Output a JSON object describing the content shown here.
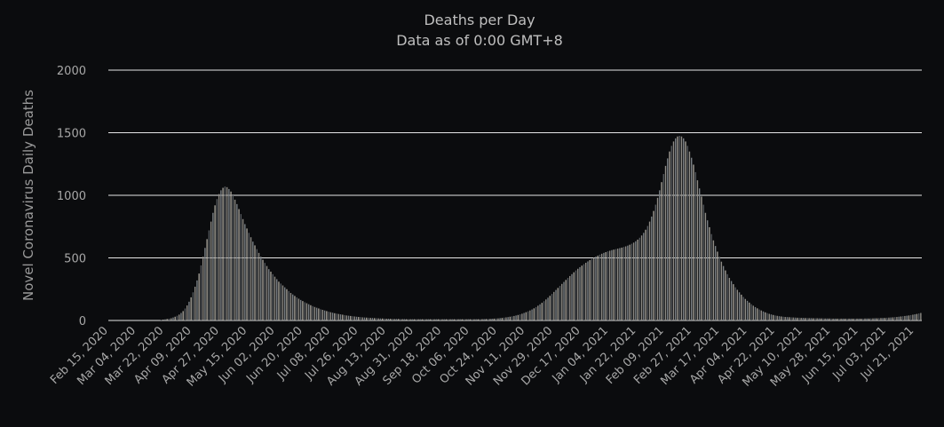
{
  "chart_data": {
    "type": "bar",
    "title": "Deaths per Day",
    "subtitle": "Data as of 0:00 GMT+8",
    "xlabel": "",
    "ylabel": "Novel Coronavirus Daily Deaths",
    "ylim": [
      0,
      2000
    ],
    "yticks": [
      0,
      500,
      1000,
      1500,
      2000
    ],
    "grid": true,
    "x_start": "2020-02-15",
    "x_end": "2021-07-26",
    "xtick_labels": [
      "Feb 15, 2020",
      "Mar 04, 2020",
      "Mar 22, 2020",
      "Apr 09, 2020",
      "Apr 27, 2020",
      "May 15, 2020",
      "Jun 02, 2020",
      "Jun 20, 2020",
      "Jul 08, 2020",
      "Jul 26, 2020",
      "Aug 13, 2020",
      "Aug 31, 2020",
      "Sep 18, 2020",
      "Oct 06, 2020",
      "Oct 24, 2020",
      "Nov 11, 2020",
      "Nov 29, 2020",
      "Dec 17, 2020",
      "Jan 04, 2021",
      "Jan 22, 2021",
      "Feb 09, 2021",
      "Feb 27, 2021",
      "Mar 17, 2021",
      "Apr 04, 2021",
      "Apr 22, 2021",
      "May 10, 2021",
      "May 28, 2021",
      "Jun 15, 2021",
      "Jul 03, 2021",
      "Jul 21, 2021"
    ],
    "bar_colors": [
      "#7a8085",
      "#a39f96",
      "#55595d",
      "#8f8c86"
    ],
    "values": [
      0,
      0,
      0,
      0,
      0,
      0,
      0,
      0,
      0,
      0,
      0,
      0,
      0,
      0,
      0,
      0,
      0,
      0,
      0,
      0,
      0,
      0,
      0,
      0,
      0,
      0,
      5,
      7,
      9,
      12,
      15,
      18,
      24,
      30,
      38,
      47,
      60,
      75,
      96,
      120,
      150,
      185,
      225,
      270,
      320,
      375,
      440,
      510,
      580,
      650,
      720,
      790,
      860,
      920,
      970,
      1010,
      1040,
      1060,
      1070,
      1065,
      1050,
      1030,
      1000,
      965,
      930,
      890,
      850,
      810,
      770,
      735,
      700,
      665,
      630,
      600,
      570,
      540,
      510,
      485,
      460,
      435,
      410,
      390,
      370,
      350,
      330,
      310,
      295,
      280,
      265,
      250,
      235,
      220,
      208,
      196,
      185,
      174,
      164,
      155,
      146,
      138,
      130,
      122,
      115,
      108,
      102,
      96,
      90,
      85,
      80,
      75,
      70,
      66,
      62,
      58,
      55,
      52,
      49,
      46,
      43,
      40,
      38,
      36,
      34,
      32,
      30,
      28,
      27,
      25,
      24,
      23,
      22,
      21,
      20,
      19,
      18,
      17,
      16,
      16,
      15,
      14,
      14,
      13,
      13,
      12,
      12,
      12,
      11,
      11,
      11,
      10,
      10,
      10,
      10,
      10,
      10,
      10,
      10,
      10,
      10,
      10,
      10,
      10,
      10,
      10,
      10,
      10,
      10,
      10,
      10,
      10,
      10,
      10,
      10,
      10,
      10,
      10,
      10,
      10,
      10,
      10,
      10,
      10,
      10,
      10,
      10,
      10,
      10,
      11,
      11,
      12,
      12,
      13,
      14,
      15,
      16,
      17,
      19,
      21,
      23,
      25,
      27,
      30,
      33,
      36,
      40,
      44,
      49,
      54,
      60,
      66,
      73,
      80,
      88,
      97,
      107,
      118,
      129,
      141,
      154,
      168,
      182,
      197,
      212,
      228,
      244,
      260,
      276,
      292,
      308,
      324,
      340,
      355,
      370,
      385,
      400,
      413,
      426,
      438,
      450,
      461,
      472,
      482,
      492,
      501,
      510,
      518,
      526,
      533,
      540,
      546,
      552,
      557,
      562,
      566,
      570,
      574,
      578,
      582,
      587,
      592,
      598,
      605,
      613,
      622,
      633,
      646,
      661,
      679,
      700,
      725,
      755,
      790,
      830,
      875,
      925,
      980,
      1040,
      1105,
      1170,
      1235,
      1295,
      1350,
      1395,
      1430,
      1455,
      1470,
      1475,
      1470,
      1455,
      1430,
      1395,
      1350,
      1300,
      1245,
      1185,
      1120,
      1055,
      990,
      925,
      860,
      800,
      745,
      690,
      640,
      595,
      550,
      510,
      470,
      435,
      400,
      370,
      340,
      315,
      290,
      265,
      245,
      225,
      206,
      188,
      172,
      157,
      143,
      130,
      118,
      107,
      97,
      88,
      80,
      72,
      65,
      59,
      53,
      48,
      44,
      40,
      37,
      34,
      32,
      30,
      28,
      27,
      26,
      25,
      24,
      23,
      22,
      22,
      21,
      21,
      20,
      20,
      19,
      19,
      18,
      18,
      18,
      17,
      17,
      17,
      16,
      16,
      16,
      16,
      15,
      15,
      15,
      15,
      15,
      15,
      15,
      15,
      15,
      15,
      15,
      15,
      15,
      15,
      15,
      15,
      16,
      16,
      16,
      17,
      17,
      18,
      18,
      19,
      20,
      20,
      21,
      22,
      23,
      24,
      25,
      27,
      28,
      30,
      32,
      34,
      36,
      38,
      40,
      43,
      46,
      49,
      52,
      56,
      60
    ]
  }
}
